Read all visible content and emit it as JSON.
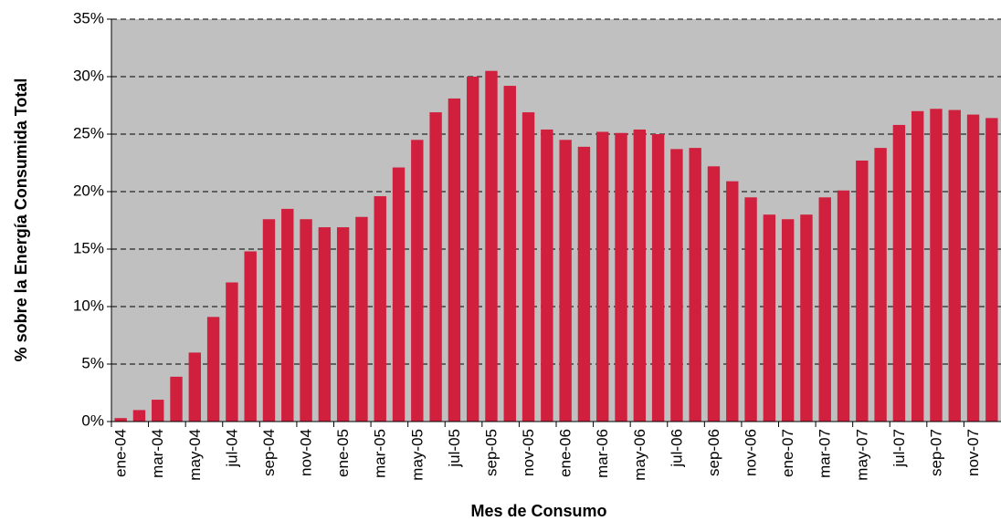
{
  "chart_data": {
    "type": "bar",
    "x_label": "Mes de Consumo",
    "y_label": "% sobre la Energía Consumida Total",
    "categories": [
      "ene-04",
      null,
      "mar-04",
      null,
      "may-04",
      null,
      "jul-04",
      null,
      "sep-04",
      null,
      "nov-04",
      null,
      "ene-05",
      null,
      "mar-05",
      null,
      "may-05",
      null,
      "jul-05",
      null,
      "sep-05",
      null,
      "nov-05",
      null,
      "ene-06",
      null,
      "mar-06",
      null,
      "may-06",
      null,
      "jul-06",
      null,
      "sep-06",
      null,
      "nov-06",
      null,
      "ene-07",
      null,
      "mar-07",
      null,
      "may-07",
      null,
      "jul-07",
      null,
      "sep-07",
      null,
      "nov-07",
      null
    ],
    "values": [
      0.3,
      1.0,
      1.9,
      3.9,
      6.0,
      9.1,
      12.1,
      14.8,
      17.6,
      18.5,
      17.6,
      16.9,
      16.9,
      17.8,
      19.6,
      22.1,
      24.5,
      26.9,
      28.1,
      30.0,
      30.5,
      29.2,
      26.9,
      25.4,
      24.5,
      23.9,
      25.2,
      25.1,
      25.4,
      25.0,
      23.7,
      23.8,
      22.2,
      20.9,
      19.5,
      18.0,
      17.6,
      18.0,
      19.5,
      20.1,
      22.7,
      23.8,
      25.8,
      27.0,
      27.2,
      27.1,
      26.7,
      26.4
    ],
    "color": "#d0203e",
    "ylim": [
      0,
      35
    ],
    "yticks": [
      {
        "value": 0,
        "label": "0%"
      },
      {
        "value": 5,
        "label": "5%"
      },
      {
        "value": 10,
        "label": "10%"
      },
      {
        "value": 15,
        "label": "15%"
      },
      {
        "value": 20,
        "label": "20%"
      },
      {
        "value": 25,
        "label": "25%"
      },
      {
        "value": 30,
        "label": "30%"
      },
      {
        "value": 35,
        "label": "35%"
      }
    ],
    "grid": true
  }
}
